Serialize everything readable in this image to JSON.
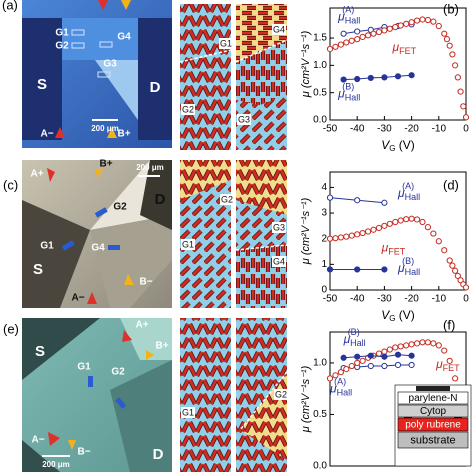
{
  "micrographs": [
    {
      "panel": "(a)",
      "source": "S",
      "drain": "D",
      "gates": [
        "G1",
        "G2",
        "G3",
        "G4"
      ],
      "contacts": [
        "A−",
        "B+"
      ],
      "scale": "200 μm"
    },
    {
      "panel": "(c)",
      "source": "S",
      "drain": "D",
      "gates": [
        "G1",
        "G2",
        "G4"
      ],
      "contacts": [
        "A+",
        "B+",
        "A−",
        "B−"
      ],
      "scale": "200 μm"
    },
    {
      "panel": "(e)",
      "source": "S",
      "drain": "D",
      "gates": [
        "G1",
        "G2"
      ],
      "contacts": [
        "A+",
        "B+",
        "A−",
        "B−"
      ],
      "scale": "200 μm"
    }
  ],
  "schematics": [
    {
      "gates": [
        "G1",
        "G2",
        "G3",
        "G4"
      ]
    },
    {
      "gates": [
        "G1",
        "G2",
        "G3",
        "G4"
      ]
    },
    {
      "gates": [
        "G1",
        "G2"
      ]
    }
  ],
  "chart_data": [
    {
      "type": "scatter",
      "panel": "(b)",
      "ylabel": "μ (cm²V⁻¹s⁻¹)",
      "xlabel_parts": [
        "V",
        "G",
        " (V)"
      ],
      "xlim": [
        -50,
        0
      ],
      "xticks": [
        -50,
        -40,
        -30,
        -20,
        -10,
        0
      ],
      "ylim": [
        0,
        2.05
      ],
      "yticks": [
        {
          "value": 0,
          "label": "0.0"
        },
        0.5,
        {
          "value": 1,
          "label": "1.0"
        },
        1.5
      ],
      "series": [
        {
          "name_parts": [
            "μ",
            "Hall",
            "(A)"
          ],
          "color": "#27349a",
          "marker": "open",
          "connect": true,
          "x": [
            -45,
            -40,
            -35,
            -30,
            -25,
            -20
          ],
          "values": [
            1.58,
            1.62,
            1.65,
            1.7,
            1.72,
            1.75
          ]
        },
        {
          "name_parts": [
            "μ",
            "FET"
          ],
          "color": "#c62a1f",
          "marker": "open",
          "connect": false,
          "x": [
            -50,
            -48,
            -46,
            -44,
            -42,
            -40,
            -38,
            -36,
            -34,
            -32,
            -30,
            -28,
            -26,
            -24,
            -22,
            -20,
            -18,
            -16,
            -14,
            -12,
            -10,
            -8,
            -7,
            -6,
            -5,
            -4,
            -3,
            -2,
            -1,
            0
          ],
          "values": [
            1.3,
            1.34,
            1.38,
            1.42,
            1.45,
            1.48,
            1.52,
            1.55,
            1.58,
            1.61,
            1.64,
            1.67,
            1.7,
            1.73,
            1.76,
            1.79,
            1.82,
            1.84,
            1.83,
            1.8,
            1.72,
            1.58,
            1.48,
            1.36,
            1.2,
            1.0,
            0.78,
            0.52,
            0.25,
            0.05
          ]
        },
        {
          "name_parts": [
            "μ",
            "Hall",
            "(B)"
          ],
          "color": "#27349a",
          "marker": "filled",
          "connect": true,
          "x": [
            -45,
            -40,
            -35,
            -30,
            -25,
            -20
          ],
          "values": [
            0.74,
            0.75,
            0.77,
            0.78,
            0.8,
            0.82
          ]
        }
      ]
    },
    {
      "type": "scatter",
      "panel": "(d)",
      "ylabel": "μ (cm²V⁻¹s⁻¹)",
      "xlabel_parts": [
        "V",
        "G",
        " (V)"
      ],
      "xlim": [
        -50,
        0
      ],
      "xticks": [
        -50,
        -40,
        -30,
        -20,
        -10,
        0
      ],
      "ylim": [
        0,
        4.6
      ],
      "yticks": [
        0,
        1,
        2,
        3,
        4
      ],
      "series": [
        {
          "name_parts": [
            "μ",
            "Hall",
            "(A)"
          ],
          "color": "#27349a",
          "marker": "open",
          "connect": true,
          "x": [
            -50,
            -40,
            -30
          ],
          "values": [
            3.6,
            3.5,
            3.4
          ]
        },
        {
          "name_parts": [
            "μ",
            "FET"
          ],
          "color": "#c62a1f",
          "marker": "open",
          "connect": false,
          "x": [
            -50,
            -48,
            -46,
            -44,
            -42,
            -40,
            -38,
            -36,
            -34,
            -32,
            -30,
            -28,
            -26,
            -24,
            -22,
            -20,
            -18,
            -16,
            -14,
            -12,
            -10,
            -8,
            -6,
            -5,
            -4,
            -3,
            -2,
            -1,
            0
          ],
          "values": [
            2.0,
            2.02,
            2.05,
            2.08,
            2.12,
            2.17,
            2.22,
            2.28,
            2.35,
            2.42,
            2.5,
            2.58,
            2.65,
            2.71,
            2.76,
            2.78,
            2.75,
            2.65,
            2.45,
            2.2,
            1.9,
            1.55,
            1.15,
            0.95,
            0.75,
            0.55,
            0.38,
            0.22,
            0.1
          ]
        },
        {
          "name_parts": [
            "μ",
            "Hall",
            "(B)"
          ],
          "color": "#27349a",
          "marker": "filled",
          "connect": true,
          "x": [
            -50,
            -40,
            -30
          ],
          "values": [
            0.8,
            0.8,
            0.8
          ]
        }
      ]
    },
    {
      "type": "scatter",
      "panel": "(f)",
      "ylabel": "μ (cm²V⁻¹s⁻¹)",
      "xlim": [
        -50,
        0
      ],
      "ylim": [
        0,
        1.3
      ],
      "yticks": [
        {
          "value": 0,
          "label": "0.0"
        },
        0.5,
        {
          "value": 1,
          "label": "1.0"
        }
      ],
      "inset_layers": [
        "parylene-N",
        "Cytop",
        "poly rubrene",
        "substrate"
      ],
      "series": [
        {
          "name_parts": [
            "μ",
            "Hall",
            "(A)"
          ],
          "color": "#27349a",
          "marker": "open",
          "connect": true,
          "x": [
            -45,
            -40,
            -35,
            -30,
            -25,
            -20
          ],
          "values": [
            0.95,
            0.96,
            0.97,
            0.97,
            0.98,
            0.98
          ]
        },
        {
          "name_parts": [
            "μ",
            "FET"
          ],
          "color": "#c62a1f",
          "marker": "open",
          "connect": false,
          "x": [
            -50,
            -48,
            -46,
            -44,
            -42,
            -40,
            -38,
            -36,
            -34,
            -32,
            -30,
            -28,
            -26,
            -24,
            -22,
            -20,
            -18,
            -16,
            -14,
            -12,
            -10,
            -8,
            -6,
            -4,
            -3,
            -2
          ],
          "values": [
            0.85,
            0.88,
            0.91,
            0.94,
            0.97,
            1.0,
            1.02,
            1.05,
            1.07,
            1.09,
            1.11,
            1.13,
            1.15,
            1.16,
            1.17,
            1.18,
            1.19,
            1.2,
            1.2,
            1.19,
            1.17,
            1.12,
            1.02,
            0.85,
            0.7,
            0.5
          ]
        },
        {
          "name_parts": [
            "μ",
            "Hall",
            "(B)"
          ],
          "color": "#27349a",
          "marker": "filled",
          "connect": true,
          "x": [
            -45,
            -40,
            -35,
            -30,
            -25,
            -20
          ],
          "values": [
            1.05,
            1.06,
            1.07,
            1.06,
            1.08,
            1.07
          ]
        }
      ]
    }
  ]
}
